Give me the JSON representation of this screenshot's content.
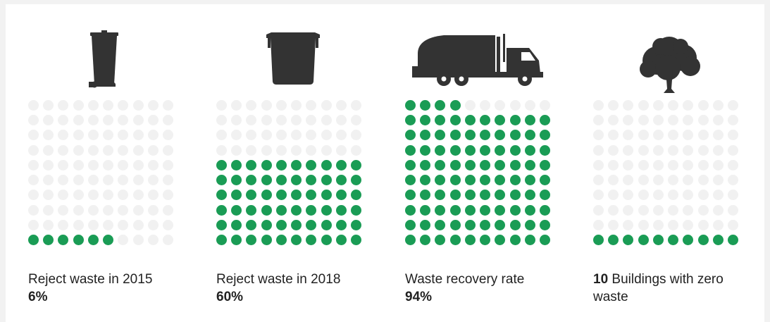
{
  "chart_data": {
    "type": "waffle",
    "grid": {
      "rows": 10,
      "cols": 10
    },
    "colors": {
      "filled": "#1a9c55",
      "empty": "#f1f1f1",
      "icon": "#333333"
    },
    "items": [
      {
        "icon": "wheelie-bin-icon",
        "label": "Reject waste in 2015",
        "value_text": "6%",
        "value": 6
      },
      {
        "icon": "skip-container-icon",
        "label": "Reject waste in 2018",
        "value_text": "60%",
        "value": 60
      },
      {
        "icon": "garbage-truck-icon",
        "label": "Waste recovery rate",
        "value_text": "94%",
        "value": 94
      },
      {
        "icon": "tree-icon",
        "label_bold": "10",
        "label": " Buildings with zero waste",
        "value": 10
      }
    ]
  }
}
